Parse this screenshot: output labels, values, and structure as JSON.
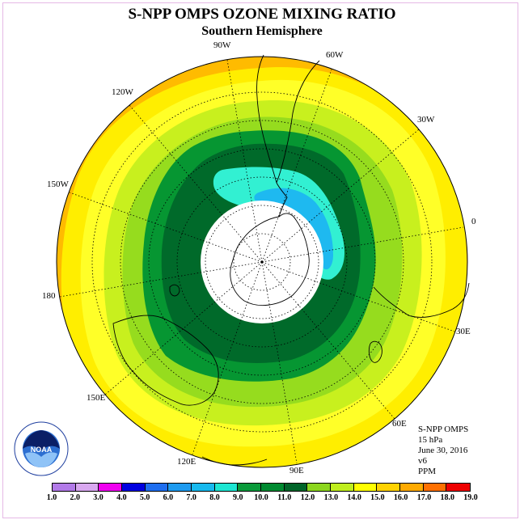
{
  "title": "S-NPP OMPS OZONE MIXING RATIO",
  "subtitle": "Southern Hemisphere",
  "longitude_labels": [
    {
      "key": "lon-90w",
      "text": "90W"
    },
    {
      "key": "lon-60w",
      "text": "60W"
    },
    {
      "key": "lon-120w",
      "text": "120W"
    },
    {
      "key": "lon-30w",
      "text": "30W"
    },
    {
      "key": "lon-150w",
      "text": "150W"
    },
    {
      "key": "lon-0",
      "text": "0"
    },
    {
      "key": "lon-180",
      "text": "180"
    },
    {
      "key": "lon-30e",
      "text": "30E"
    },
    {
      "key": "lon-150e",
      "text": "150E"
    },
    {
      "key": "lon-60e",
      "text": "60E"
    },
    {
      "key": "lon-120e",
      "text": "120E"
    },
    {
      "key": "lon-90e",
      "text": "90E"
    }
  ],
  "info": {
    "instrument": "S-NPP OMPS",
    "level": "15 hPa",
    "date": "June 30, 2016",
    "version": "v6",
    "units": "PPM"
  },
  "logo": {
    "icon": "noaa-logo-icon",
    "text": "NOAA"
  },
  "legend": {
    "ticks": [
      "1.0",
      "2.0",
      "3.0",
      "4.0",
      "5.0",
      "6.0",
      "7.0",
      "8.0",
      "9.0",
      "10.0",
      "11.0",
      "12.0",
      "13.0",
      "14.0",
      "15.0",
      "16.0",
      "17.0",
      "18.0",
      "19.0"
    ],
    "colors": [
      "#b27ae8",
      "#d9a8f0",
      "#ef00ef",
      "#0000e0",
      "#1e6ef0",
      "#1e9bf0",
      "#17b9ee",
      "#1de6d2",
      "#0a9a3a",
      "#008a30",
      "#006428",
      "#8cd61e",
      "#bfee1e",
      "#ffff00",
      "#ffd200",
      "#ffaa00",
      "#ff7000",
      "#ee0000",
      "#8b5a3c"
    ]
  },
  "map_colors": {
    "band_16": "#ffbb00",
    "band_15": "#ffee00",
    "band_14": "#ffff28",
    "band_13": "#c8f01e",
    "band_12": "#96dc1e",
    "band_11": "#069632",
    "band_10": "#006a2a",
    "band_8": "#32f0d2",
    "band_7": "#1eb9f0",
    "polar_night": "#ffffff"
  }
}
